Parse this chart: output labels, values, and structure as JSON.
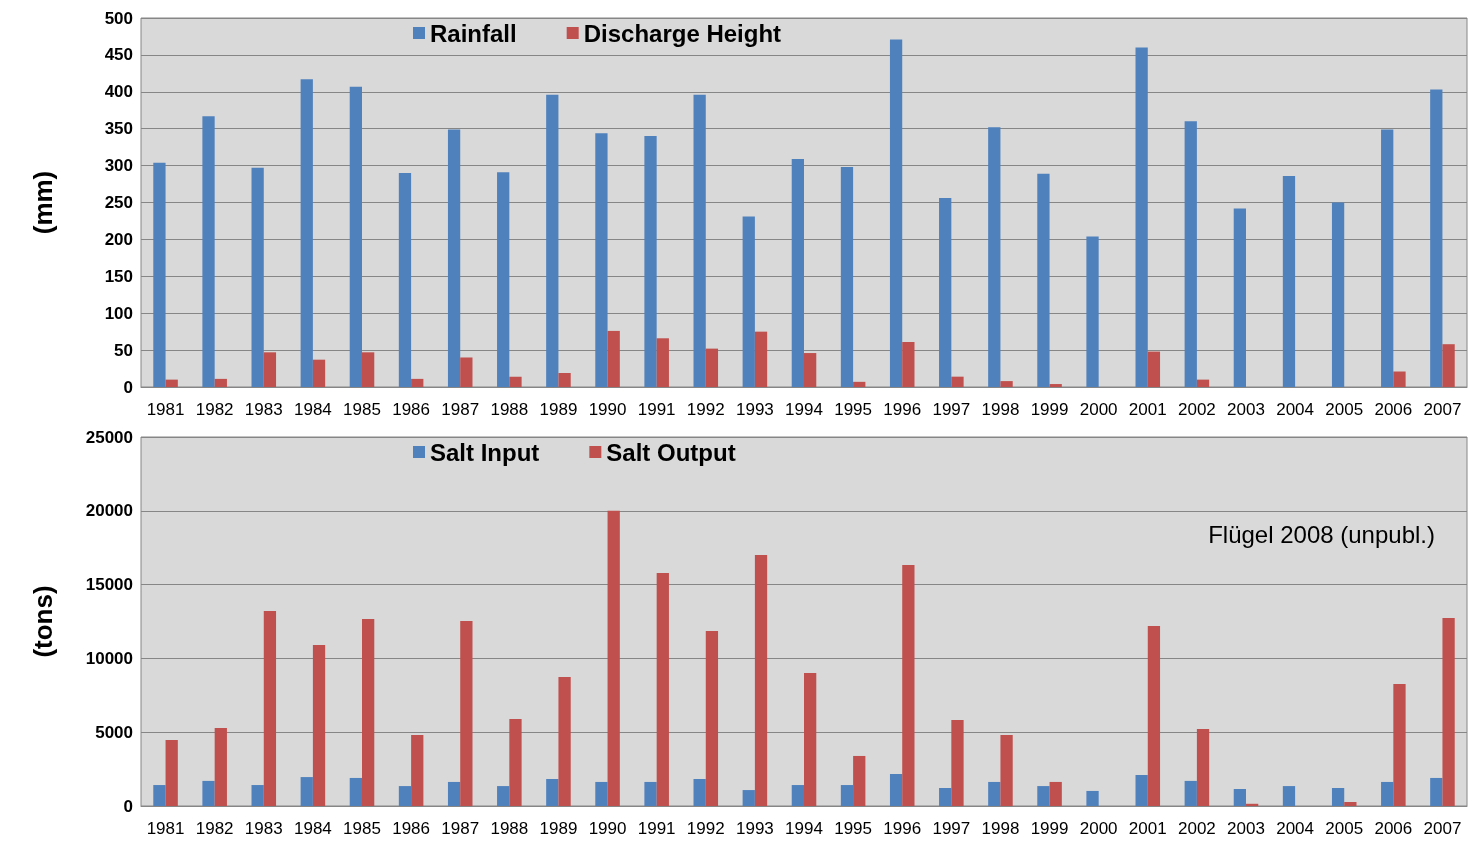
{
  "chart_data": [
    {
      "type": "bar",
      "ylabel": "(mm)",
      "categories": [
        "1981",
        "1982",
        "1983",
        "1984",
        "1985",
        "1986",
        "1987",
        "1988",
        "1989",
        "1990",
        "1991",
        "1992",
        "1993",
        "1994",
        "1995",
        "1996",
        "1997",
        "1998",
        "1999",
        "2000",
        "2001",
        "2002",
        "2003",
        "2004",
        "2005",
        "2006",
        "2007"
      ],
      "series": [
        {
          "name": "Rainfall",
          "color": "#4f81bd",
          "values": [
            304,
            367,
            297,
            417,
            407,
            290,
            349,
            291,
            396,
            344,
            340,
            396,
            231,
            309,
            298,
            471,
            256,
            352,
            289,
            204,
            460,
            360,
            242,
            286,
            250,
            349,
            403
          ]
        },
        {
          "name": "Discharge Height",
          "color": "#c0504d",
          "values": [
            10,
            11,
            47,
            37,
            47,
            11,
            40,
            14,
            19,
            76,
            66,
            52,
            75,
            46,
            7,
            61,
            14,
            8,
            4,
            null,
            48,
            10,
            null,
            null,
            null,
            21,
            58
          ]
        }
      ],
      "ylim": [
        0,
        500
      ],
      "yticks": [
        0,
        50,
        100,
        150,
        200,
        250,
        300,
        350,
        400,
        450,
        500
      ],
      "grid": "y",
      "legend": "top left"
    },
    {
      "type": "bar",
      "ylabel": "(tons)",
      "annotations": [
        "Flügel 2008 (unpubl.)"
      ],
      "categories": [
        "1981",
        "1982",
        "1983",
        "1984",
        "1985",
        "1986",
        "1987",
        "1988",
        "1989",
        "1990",
        "1991",
        "1992",
        "1993",
        "1994",
        "1995",
        "1996",
        "1997",
        "1998",
        "1999",
        "2000",
        "2001",
        "2002",
        "2003",
        "2004",
        "2005",
        "2006",
        "2007"
      ],
      "series": [
        {
          "name": "Salt Input",
          "color": "#4f81bd",
          "values": [
            1420,
            1700,
            1420,
            1960,
            1900,
            1350,
            1630,
            1350,
            1830,
            1630,
            1630,
            1830,
            1080,
            1420,
            1420,
            2170,
            1220,
            1630,
            1350,
            1020,
            2100,
            1700,
            1150,
            1350,
            1220,
            1630,
            1900
          ]
        },
        {
          "name": "Salt Output",
          "color": "#c0504d",
          "values": [
            4470,
            5280,
            13210,
            10910,
            12670,
            4810,
            12540,
            5890,
            8740,
            20000,
            15790,
            11860,
            17010,
            9010,
            3390,
            16330,
            5830,
            4810,
            1630,
            null,
            12200,
            5220,
            150,
            null,
            270,
            8270,
            12740
          ]
        }
      ],
      "ylim": [
        0,
        25000
      ],
      "yticks": [
        0,
        5000,
        10000,
        15000,
        20000,
        25000
      ],
      "grid": "y",
      "legend": "top left"
    }
  ]
}
